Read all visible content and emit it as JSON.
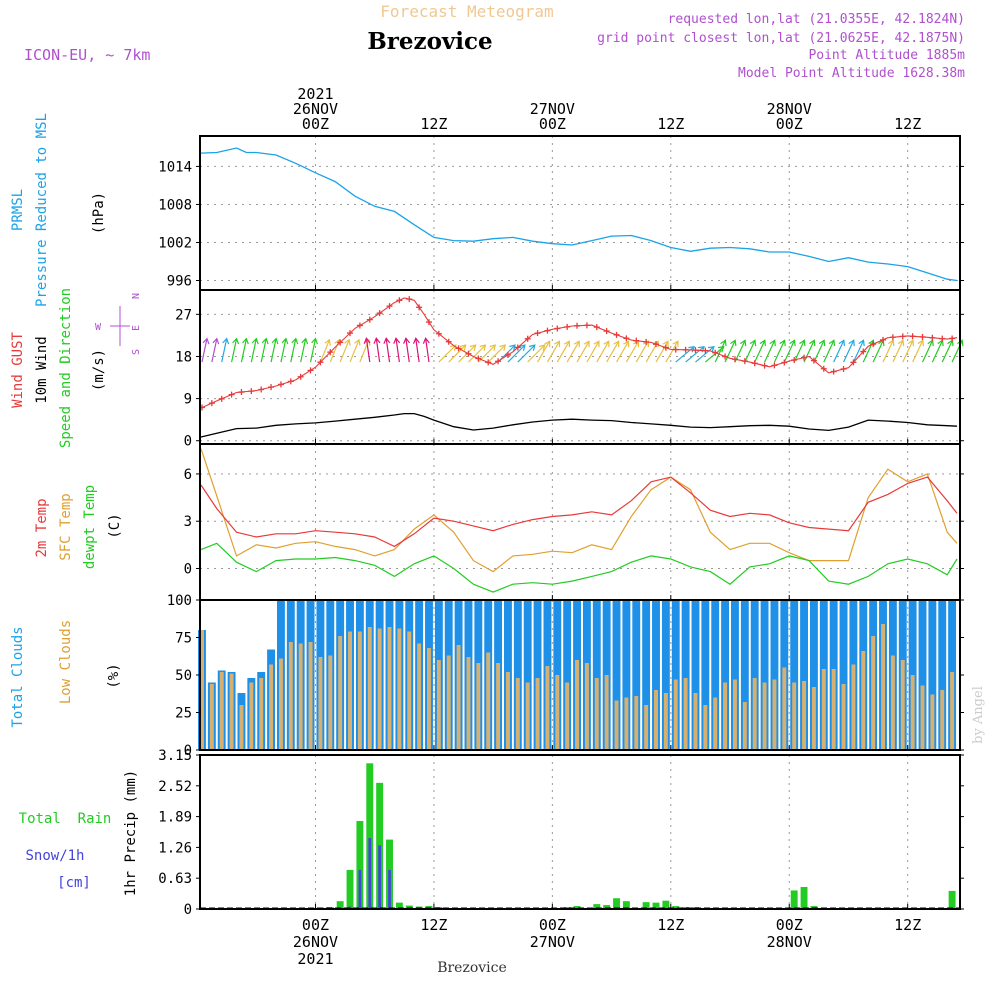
{
  "header": {
    "subtitle": "Forecast Meteogram",
    "title": "Brezovice",
    "model": "ICON-EU, ~ 7km",
    "requested": "requested lon,lat (21.0355E, 42.1824N)",
    "gridpoint": "grid point closest lon,lat (21.0625E, 42.1875N)",
    "point_alt": "Point Altitude 1885m",
    "model_alt": "Model Point Altitude 1628.38m",
    "footer": "Brezovice",
    "credit": "by Angel"
  },
  "time_axis": {
    "top_labels": [
      {
        "t": 0,
        "lines": [
          "2021",
          "26NOV",
          "00Z"
        ]
      },
      {
        "t": 12,
        "lines": [
          "12Z"
        ]
      },
      {
        "t": 24,
        "lines": [
          "27NOV",
          "00Z"
        ]
      },
      {
        "t": 36,
        "lines": [
          "12Z"
        ]
      },
      {
        "t": 48,
        "lines": [
          "28NOV",
          "00Z"
        ]
      },
      {
        "t": 60,
        "lines": [
          "12Z"
        ]
      }
    ],
    "bottom_labels": [
      {
        "t": 0,
        "lines": [
          "00Z",
          "26NOV",
          "2021"
        ]
      },
      {
        "t": 12,
        "lines": [
          "12Z"
        ]
      },
      {
        "t": 24,
        "lines": [
          "00Z",
          "27NOV"
        ]
      },
      {
        "t": 36,
        "lines": [
          "12Z"
        ]
      },
      {
        "t": 48,
        "lines": [
          "00Z",
          "28NOV"
        ]
      },
      {
        "t": 60,
        "lines": [
          "12Z"
        ]
      }
    ],
    "range_hours": [
      -11.7,
      65.3
    ]
  },
  "colors": {
    "pressure": "#1aa3e8",
    "gust": "#e83a3a",
    "wind10m": "#000000",
    "t2m": "#e83a3a",
    "sfc": "#e0a030",
    "dewpt": "#22cc22",
    "total_clouds": "#1e90e8",
    "low_clouds": "#d6b070",
    "rain": "#22cc22",
    "snow": "#4444dd",
    "purple": "#b050d0",
    "orange_title": "#f0c890"
  },
  "panels": {
    "pressure": {
      "labels": [
        "PRMSL",
        "Pressure Reduced to MSL"
      ],
      "unit": "(hPa)",
      "ticks": [
        996,
        1002,
        1008,
        1014
      ]
    },
    "wind": {
      "labels": [
        "Wind GUST",
        "10m Wind",
        "Speed and Direction"
      ],
      "unit": "(m/s)",
      "ticks": [
        0,
        9,
        18,
        27
      ],
      "compass": [
        "N",
        "W",
        "E",
        "S"
      ]
    },
    "temp": {
      "labels": [
        "2m Temp",
        "SFC Temp",
        "dewpt Temp"
      ],
      "unit": "(C)",
      "ticks": [
        0,
        3,
        6
      ]
    },
    "clouds": {
      "labels": [
        "Total Clouds",
        "Low Clouds"
      ],
      "unit": "(%)",
      "ticks": [
        0,
        25,
        50,
        75,
        100
      ]
    },
    "precip": {
      "labels": [
        "Total  Rain",
        "Snow/1h",
        "[cm]"
      ],
      "unit": "1hr Precip (mm)",
      "ticks": [
        "0",
        "0.63",
        "1.26",
        "1.89",
        "2.52",
        "3.15"
      ]
    }
  },
  "chart_data": [
    {
      "type": "line",
      "series_id": "pressure",
      "ylabel": "Pressure Reduced to MSL (hPa)",
      "ylim": [
        994.5,
        1018.8
      ],
      "x": [
        -11.6,
        -10,
        -8,
        -7,
        -6,
        -4,
        -2,
        0,
        2,
        4,
        6,
        8,
        10,
        12,
        14,
        16,
        18,
        20,
        22,
        24,
        26,
        28,
        30,
        32,
        34,
        36,
        38,
        40,
        42,
        44,
        46,
        48,
        50,
        52,
        54,
        56,
        58,
        60,
        62,
        64,
        65
      ],
      "values": [
        1016.1,
        1016.2,
        1016.9,
        1016.2,
        1016.2,
        1015.8,
        1014.5,
        1013.0,
        1011.6,
        1009.3,
        1007.7,
        1006.9,
        1004.8,
        1002.8,
        1002.3,
        1002.2,
        1002.6,
        1002.8,
        1002.2,
        1001.8,
        1001.6,
        1002.3,
        1003.0,
        1003.1,
        1002.3,
        1001.2,
        1000.6,
        1001.1,
        1001.2,
        1001.0,
        1000.5,
        1000.5,
        999.8,
        999.0,
        999.6,
        998.9,
        998.6,
        998.2,
        997.2,
        996.2,
        996.0
      ]
    },
    {
      "type": "line",
      "series_id": "wind",
      "ylabel": "(m/s)",
      "ylim": [
        -0.7,
        32.2
      ],
      "x": [
        -11.6,
        -10,
        -8,
        -6,
        -4,
        -2,
        0,
        2,
        4,
        6,
        8,
        9,
        10,
        11,
        12,
        14,
        16,
        18,
        20,
        22,
        24,
        26,
        28,
        30,
        32,
        34,
        36,
        38,
        40,
        42,
        44,
        46,
        48,
        50,
        52,
        54,
        56,
        58,
        60,
        62,
        64,
        65
      ],
      "gust": [
        7.0,
        8.5,
        10.3,
        10.7,
        11.7,
        13.0,
        15.7,
        20.0,
        24.0,
        26.5,
        29.5,
        30.5,
        30.0,
        27.0,
        23.7,
        20.3,
        18.0,
        16.3,
        19.0,
        22.7,
        23.8,
        24.5,
        24.7,
        23.0,
        21.5,
        21.0,
        19.5,
        19.4,
        19.2,
        17.6,
        16.8,
        15.8,
        17.0,
        18.0,
        14.5,
        15.6,
        20.2,
        22.0,
        22.4,
        22.1,
        21.7,
        22.0
      ],
      "speed": [
        0.8,
        1.6,
        2.6,
        2.7,
        3.3,
        3.6,
        3.8,
        4.2,
        4.6,
        5.0,
        5.5,
        5.8,
        5.8,
        5.2,
        4.4,
        3.0,
        2.3,
        2.7,
        3.4,
        4.0,
        4.4,
        4.6,
        4.4,
        4.3,
        3.9,
        3.6,
        3.3,
        2.9,
        2.8,
        3.0,
        3.2,
        3.3,
        3.1,
        2.5,
        2.2,
        2.9,
        4.4,
        4.2,
        3.9,
        3.4,
        3.2,
        3.1
      ],
      "arrow_color_bands": [
        {
          "from": -11.6,
          "to": -10,
          "color": "#b050d0"
        },
        {
          "from": -10,
          "to": -8.5,
          "color": "#22aadd"
        },
        {
          "from": -8.5,
          "to": 0,
          "color": "#22cc22"
        },
        {
          "from": 0,
          "to": 5,
          "color": "#e8c040"
        },
        {
          "from": 5,
          "to": 12,
          "color": "#dd1177"
        },
        {
          "from": 12,
          "to": 18,
          "color": "#e8c040"
        },
        {
          "from": 18,
          "to": 21,
          "color": "#22aadd"
        },
        {
          "from": 21,
          "to": 36,
          "color": "#e8c040"
        },
        {
          "from": 36,
          "to": 39,
          "color": "#22aadd"
        },
        {
          "from": 39,
          "to": 52,
          "color": "#22cc22"
        },
        {
          "from": 52,
          "to": 55,
          "color": "#22aadd"
        },
        {
          "from": 55,
          "to": 57,
          "color": "#22cc22"
        },
        {
          "from": 57,
          "to": 61,
          "color": "#e8c040"
        },
        {
          "from": 61,
          "to": 65.3,
          "color": "#22cc22"
        }
      ]
    },
    {
      "type": "line",
      "series_id": "temp",
      "ylabel": "(C)",
      "ylim": [
        -2.0,
        7.9
      ],
      "x": [
        -11.6,
        -10,
        -8,
        -6,
        -4,
        -2,
        0,
        2,
        4,
        6,
        8,
        10,
        12,
        14,
        16,
        18,
        20,
        22,
        24,
        26,
        28,
        30,
        32,
        34,
        36,
        38,
        40,
        42,
        44,
        46,
        48,
        50,
        52,
        54,
        56,
        58,
        60,
        62,
        64,
        65
      ],
      "t2m": [
        5.3,
        3.8,
        2.3,
        2.0,
        2.2,
        2.2,
        2.4,
        2.3,
        2.2,
        2.0,
        1.4,
        2.2,
        3.2,
        3.0,
        2.7,
        2.4,
        2.8,
        3.1,
        3.3,
        3.4,
        3.6,
        3.4,
        4.3,
        5.5,
        5.8,
        4.8,
        3.7,
        3.3,
        3.5,
        3.4,
        2.9,
        2.6,
        2.5,
        2.4,
        4.2,
        4.7,
        5.4,
        5.8,
        4.3,
        3.5
      ],
      "sfc": [
        7.6,
        4.6,
        0.8,
        1.5,
        1.3,
        1.6,
        1.7,
        1.4,
        1.2,
        0.8,
        1.2,
        2.5,
        3.4,
        2.3,
        0.5,
        -0.2,
        0.8,
        0.9,
        1.1,
        1.0,
        1.5,
        1.2,
        3.3,
        5.0,
        5.8,
        5.0,
        2.3,
        1.2,
        1.6,
        1.6,
        1.0,
        0.5,
        0.5,
        0.5,
        4.5,
        6.3,
        5.5,
        6.0,
        2.3,
        1.6
      ],
      "dewpt": [
        1.2,
        1.6,
        0.4,
        -0.2,
        0.5,
        0.6,
        0.6,
        0.7,
        0.5,
        0.2,
        -0.5,
        0.3,
        0.8,
        0.0,
        -1.0,
        -1.5,
        -1.0,
        -0.9,
        -1.0,
        -0.8,
        -0.5,
        -0.2,
        0.4,
        0.8,
        0.6,
        0.1,
        -0.2,
        -1.0,
        0.1,
        0.3,
        0.8,
        0.5,
        -0.8,
        -1.0,
        -0.5,
        0.3,
        0.6,
        0.3,
        -0.4,
        0.6
      ]
    },
    {
      "type": "bar",
      "series_id": "clouds",
      "ylabel": "(%)",
      "ylim": [
        0,
        100
      ],
      "x_start": -11.5,
      "x_step": 1,
      "total": [
        80,
        45,
        53,
        52,
        38,
        48,
        52,
        67,
        100,
        100,
        100,
        100,
        100,
        100,
        100,
        100,
        100,
        100,
        100,
        100,
        100,
        100,
        100,
        100,
        100,
        100,
        100,
        100,
        100,
        100,
        100,
        100,
        100,
        100,
        100,
        100,
        100,
        100,
        100,
        100,
        100,
        100,
        100,
        100,
        100,
        100,
        100,
        100,
        100,
        100,
        100,
        100,
        100,
        100,
        100,
        100,
        100,
        100,
        100,
        100,
        100,
        100,
        100,
        100,
        100,
        100,
        100,
        100,
        100,
        100,
        100,
        100,
        100,
        100,
        100,
        100,
        100,
        100,
        100,
        100,
        100,
        100,
        100,
        100,
        100,
        100,
        100,
        100,
        100,
        100,
        100,
        100,
        100,
        100,
        100,
        100,
        100,
        100,
        100,
        100
      ],
      "low": [
        80,
        44,
        52,
        51,
        30,
        45,
        48,
        57,
        61,
        72,
        71,
        72,
        62,
        63,
        76,
        79,
        79,
        82,
        81,
        82,
        81,
        79,
        71,
        68,
        60,
        63,
        70,
        62,
        58,
        65,
        58,
        52,
        48,
        45,
        48,
        56,
        50,
        45,
        60,
        58,
        48,
        50,
        33,
        35,
        36,
        30,
        40,
        38,
        47,
        48,
        38,
        30,
        35,
        45,
        47,
        32,
        48,
        45,
        47,
        55,
        45,
        46,
        42,
        54,
        54,
        44,
        57,
        66,
        76,
        84,
        63,
        60,
        50,
        43,
        37,
        40,
        52,
        45,
        55,
        57,
        68,
        67,
        55,
        58,
        57,
        40,
        53,
        45,
        58,
        56,
        80,
        78,
        70,
        68,
        70,
        75,
        78,
        85,
        88,
        82
      ]
    },
    {
      "type": "bar",
      "series_id": "precip",
      "ylabel": "1hr Precip (mm)",
      "ylim": [
        0,
        3.15
      ],
      "x_start": -11.5,
      "x_step": 1,
      "rain": [
        0,
        0,
        0,
        0,
        0,
        0,
        0,
        0,
        0,
        0,
        0,
        0,
        0.03,
        0.04,
        0.16,
        0.8,
        1.8,
        2.98,
        2.58,
        1.42,
        0.13,
        0.07,
        0.05,
        0.06,
        0.04,
        0,
        0,
        0,
        0,
        0,
        0,
        0,
        0,
        0,
        0,
        0,
        0,
        0.04,
        0.06,
        0,
        0.1,
        0.08,
        0.22,
        0.16,
        0,
        0.14,
        0.13,
        0.17,
        0.06,
        0.04,
        0.04,
        0,
        0,
        0,
        0,
        0,
        0,
        0,
        0,
        0,
        0.38,
        0.45,
        0.06,
        0,
        0,
        0,
        0,
        0,
        0,
        0,
        0,
        0,
        0,
        0,
        0,
        0,
        0.37,
        0.36,
        0.62
      ],
      "snow": [
        0,
        0,
        0,
        0,
        0,
        0,
        0,
        0,
        0,
        0,
        0,
        0,
        0,
        0,
        0,
        0.05,
        0.8,
        1.45,
        1.3,
        0.8,
        0,
        0,
        0,
        0,
        0,
        0,
        0,
        0,
        0,
        0,
        0,
        0,
        0,
        0,
        0,
        0,
        0,
        0,
        0,
        0,
        0,
        0,
        0,
        0,
        0,
        0,
        0,
        0,
        0,
        0,
        0,
        0,
        0,
        0,
        0,
        0,
        0,
        0,
        0,
        0,
        0,
        0,
        0,
        0,
        0,
        0,
        0,
        0,
        0,
        0,
        0,
        0,
        0,
        0,
        0,
        0,
        0,
        0,
        0
      ]
    }
  ]
}
